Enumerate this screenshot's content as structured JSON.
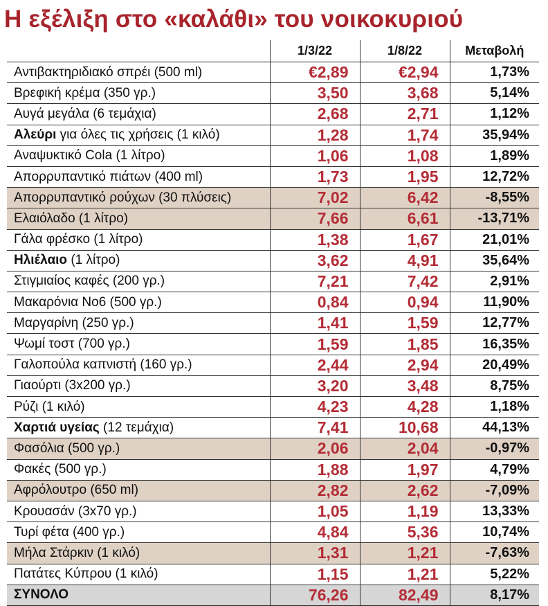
{
  "chart_data": {
    "type": "table",
    "title": "Η εξέλιξη στο «καλάθι» του νοικοκυριού",
    "columns": [
      "",
      "1/3/22",
      "1/8/22",
      "Μεταβολή"
    ],
    "currency_symbol": "€",
    "rows": [
      {
        "bold": "",
        "name": "Αντιβακτηριδιακό σπρέι (500 ml)",
        "v1": "2,89",
        "v2": "2,94",
        "change": "1,73%",
        "highlight": false,
        "euro": true
      },
      {
        "bold": "",
        "name": "Βρεφική κρέμα (350 γρ.)",
        "v1": "3,50",
        "v2": "3,68",
        "change": "5,14%",
        "highlight": false
      },
      {
        "bold": "",
        "name": "Αυγά μεγάλα (6 τεμάχια)",
        "v1": "2,68",
        "v2": "2,71",
        "change": "1,12%",
        "highlight": false
      },
      {
        "bold": "Αλεύρι",
        "name": " για όλες τις χρήσεις (1 κιλό)",
        "v1": "1,28",
        "v2": "1,74",
        "change": "35,94%",
        "highlight": false
      },
      {
        "bold": "",
        "name": "Αναψυκτικό Cola (1 λίτρο)",
        "v1": "1,06",
        "v2": "1,08",
        "change": "1,89%",
        "highlight": false
      },
      {
        "bold": "",
        "name": "Απορρυπαντικό πιάτων (400 ml)",
        "v1": "1,73",
        "v2": "1,95",
        "change": "12,72%",
        "highlight": false
      },
      {
        "bold": "",
        "name": "Απορρυπαντικό ρούχων (30 πλύσεις)",
        "v1": "7,02",
        "v2": "6,42",
        "change": "-8,55%",
        "highlight": true
      },
      {
        "bold": "",
        "name": "Ελαιόλαδο (1 λίτρο)",
        "v1": "7,66",
        "v2": "6,61",
        "change": "-13,71%",
        "highlight": true
      },
      {
        "bold": "",
        "name": "Γάλα φρέσκο (1 λίτρο)",
        "v1": "1,38",
        "v2": "1,67",
        "change": "21,01%",
        "highlight": false
      },
      {
        "bold": "Ηλιέλαιο",
        "name": " (1 λίτρο)",
        "v1": "3,62",
        "v2": "4,91",
        "change": "35,64%",
        "highlight": false
      },
      {
        "bold": "",
        "name": "Στιγμιαίος καφές (200 γρ.)",
        "v1": "7,21",
        "v2": "7,42",
        "change": "2,91%",
        "highlight": false
      },
      {
        "bold": "",
        "name": "Μακαρόνια Νο6 (500 γρ.)",
        "v1": "0,84",
        "v2": "0,94",
        "change": "11,90%",
        "highlight": false
      },
      {
        "bold": "",
        "name": "Μαργαρίνη (250 γρ.)",
        "v1": "1,41",
        "v2": "1,59",
        "change": "12,77%",
        "highlight": false
      },
      {
        "bold": "",
        "name": "Ψωμί τοστ (700 γρ.)",
        "v1": "1,59",
        "v2": "1,85",
        "change": "16,35%",
        "highlight": false
      },
      {
        "bold": "",
        "name": "Γαλοπούλα καπνιστή (160 γρ.)",
        "v1": "2,44",
        "v2": "2,94",
        "change": "20,49%",
        "highlight": false
      },
      {
        "bold": "",
        "name": "Γιαούρτι (3x200 γρ.)",
        "v1": "3,20",
        "v2": "3,48",
        "change": "8,75%",
        "highlight": false
      },
      {
        "bold": "",
        "name": "Ρύζι (1 κιλό)",
        "v1": "4,23",
        "v2": "4,28",
        "change": "1,18%",
        "highlight": false
      },
      {
        "bold": "Χαρτιά υγείας",
        "name": " (12 τεμάχια)",
        "v1": "7,41",
        "v2": "10,68",
        "change": "44,13%",
        "highlight": false
      },
      {
        "bold": "",
        "name": "Φασόλια (500 γρ.)",
        "v1": "2,06",
        "v2": "2,04",
        "change": "-0,97%",
        "highlight": true
      },
      {
        "bold": "",
        "name": "Φακές (500 γρ.)",
        "v1": "1,88",
        "v2": "1,97",
        "change": "4,79%",
        "highlight": false
      },
      {
        "bold": "",
        "name": "Αφρόλουτρο (650 ml)",
        "v1": "2,82",
        "v2": "2,62",
        "change": "-7,09%",
        "highlight": true
      },
      {
        "bold": "",
        "name": "Κρουασάν (3x70 γρ.)",
        "v1": "1,05",
        "v2": "1,19",
        "change": "13,33%",
        "highlight": false
      },
      {
        "bold": "",
        "name": "Τυρί φέτα (400 γρ.)",
        "v1": "4,84",
        "v2": "5,36",
        "change": "10,74%",
        "highlight": false
      },
      {
        "bold": "",
        "name": "Μήλα Στάρκιν (1 κιλό)",
        "v1": "1,31",
        "v2": "1,21",
        "change": "-7,63%",
        "highlight": true
      },
      {
        "bold": "",
        "name": "Πατάτες Κύπρου (1 κιλό)",
        "v1": "1,15",
        "v2": "1,21",
        "change": "5,22%",
        "highlight": false
      }
    ],
    "total": {
      "name": "ΣΥΝΟΛΟ",
      "v1": "76,26",
      "v2": "82,49",
      "change": "8,17%"
    }
  }
}
